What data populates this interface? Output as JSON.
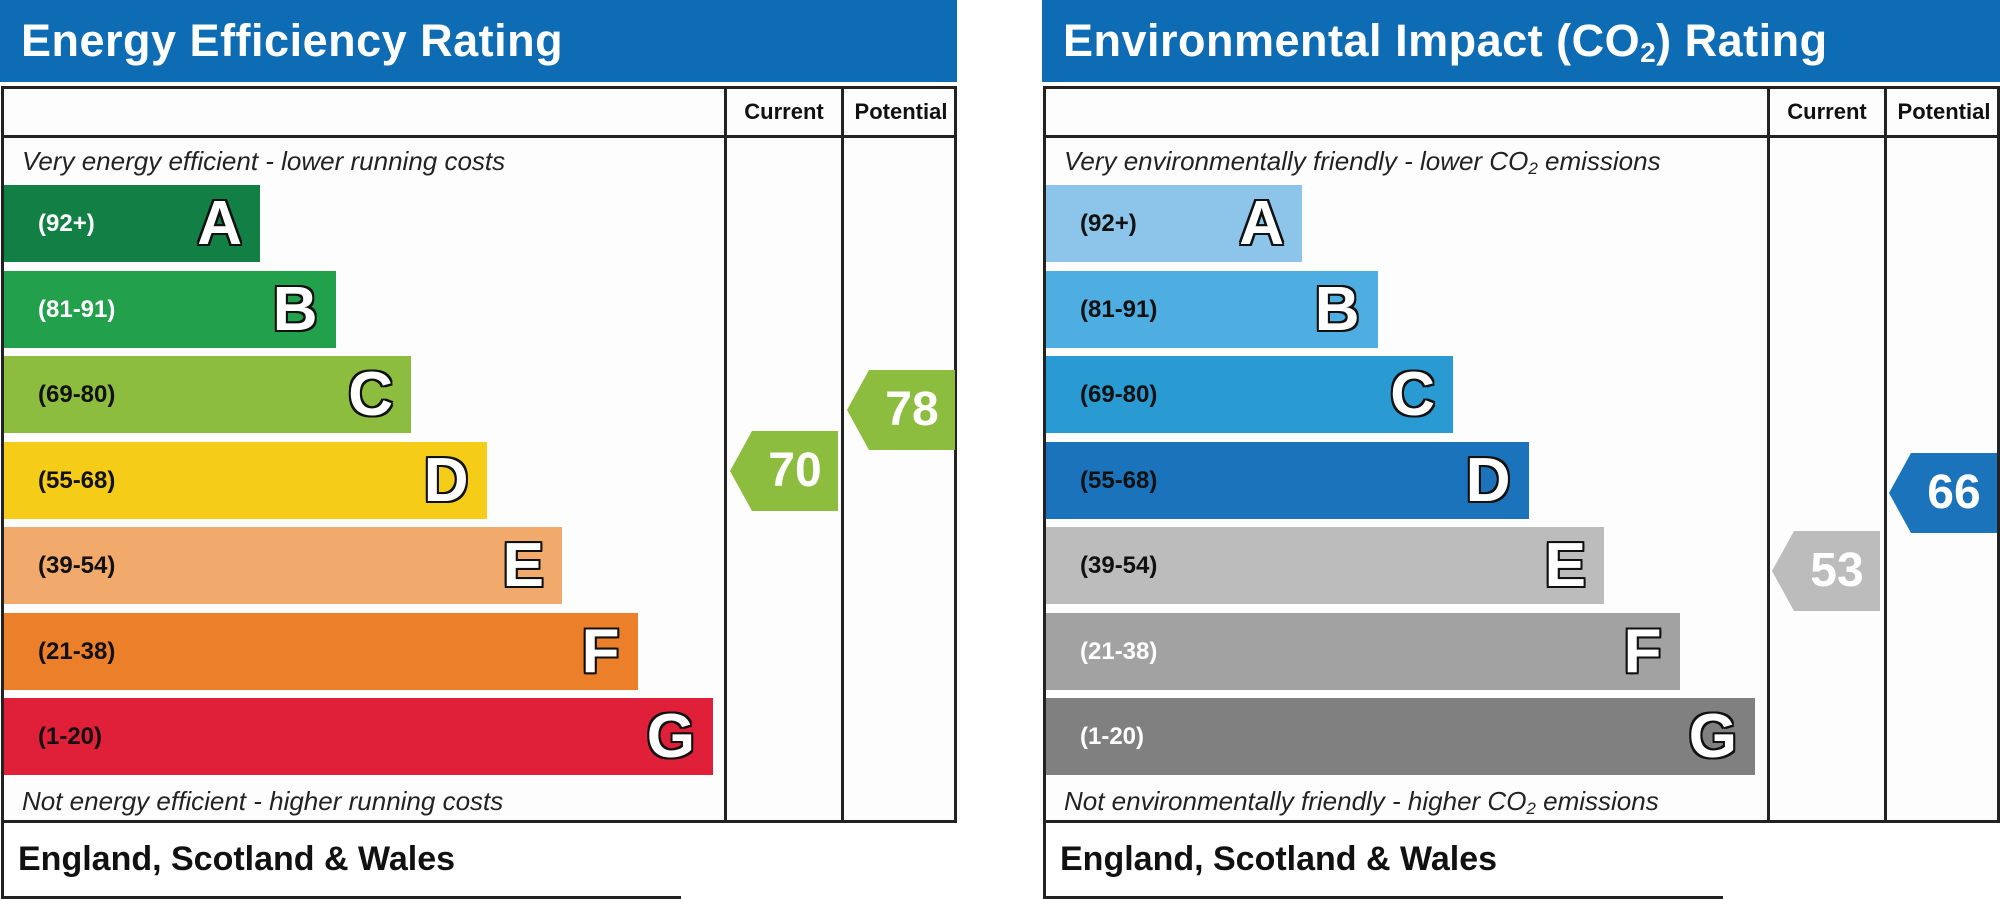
{
  "chart_data": [
    {
      "type": "bar",
      "title": "Energy Efficiency Rating",
      "columns": [
        "Current",
        "Potential"
      ],
      "top_note": "Very energy efficient - lower running costs",
      "bottom_note": "Not energy efficient - higher running costs",
      "bands": [
        {
          "letter": "A",
          "range": "(92+)",
          "color": "#127f45",
          "text_color": "#ffffff"
        },
        {
          "letter": "B",
          "range": "(81-91)",
          "color": "#22a04c",
          "text_color": "#ffffff"
        },
        {
          "letter": "C",
          "range": "(69-80)",
          "color": "#8cbd3f",
          "text_color": "#111111"
        },
        {
          "letter": "D",
          "range": "(55-68)",
          "color": "#f5cd19",
          "text_color": "#111111"
        },
        {
          "letter": "E",
          "range": "(39-54)",
          "color": "#f1a96c",
          "text_color": "#111111"
        },
        {
          "letter": "F",
          "range": "(21-38)",
          "color": "#ec7f29",
          "text_color": "#111111"
        },
        {
          "letter": "G",
          "range": "(1-20)",
          "color": "#e02039",
          "text_color": "#111111"
        }
      ],
      "current": {
        "value": 70,
        "band": "C",
        "color": "#8cbd3f"
      },
      "potential": {
        "value": 78,
        "band": "C",
        "color": "#8cbd3f"
      },
      "footer": "England, Scotland & Wales"
    },
    {
      "type": "bar",
      "title_main": "Environmental Impact (CO",
      "title_sub": "2",
      "title_end": ") Rating",
      "columns": [
        "Current",
        "Potential"
      ],
      "top_note_main": "Very environmentally friendly - lower CO",
      "top_note_sub": "2",
      "top_note_end": " emissions",
      "bottom_note_main": "Not environmentally friendly - higher CO",
      "bottom_note_sub": "2",
      "bottom_note_end": " emissions",
      "bands": [
        {
          "letter": "A",
          "range": "(92+)",
          "color": "#8cc5e9",
          "text_color": "#111111"
        },
        {
          "letter": "B",
          "range": "(81-91)",
          "color": "#4eade1",
          "text_color": "#111111"
        },
        {
          "letter": "C",
          "range": "(69-80)",
          "color": "#2a9ad3",
          "text_color": "#111111"
        },
        {
          "letter": "D",
          "range": "(55-68)",
          "color": "#1a73bb",
          "text_color": "#111111"
        },
        {
          "letter": "E",
          "range": "(39-54)",
          "color": "#bcbcbc",
          "text_color": "#111111"
        },
        {
          "letter": "F",
          "range": "(21-38)",
          "color": "#a2a2a2",
          "text_color": "#ffffff"
        },
        {
          "letter": "G",
          "range": "(1-20)",
          "color": "#808080",
          "text_color": "#ffffff"
        }
      ],
      "current": {
        "value": 53,
        "band": "E",
        "color": "#bcbcbc"
      },
      "potential": {
        "value": 66,
        "band": "D",
        "color": "#1a73bb"
      },
      "footer": "England, Scotland & Wales"
    }
  ]
}
